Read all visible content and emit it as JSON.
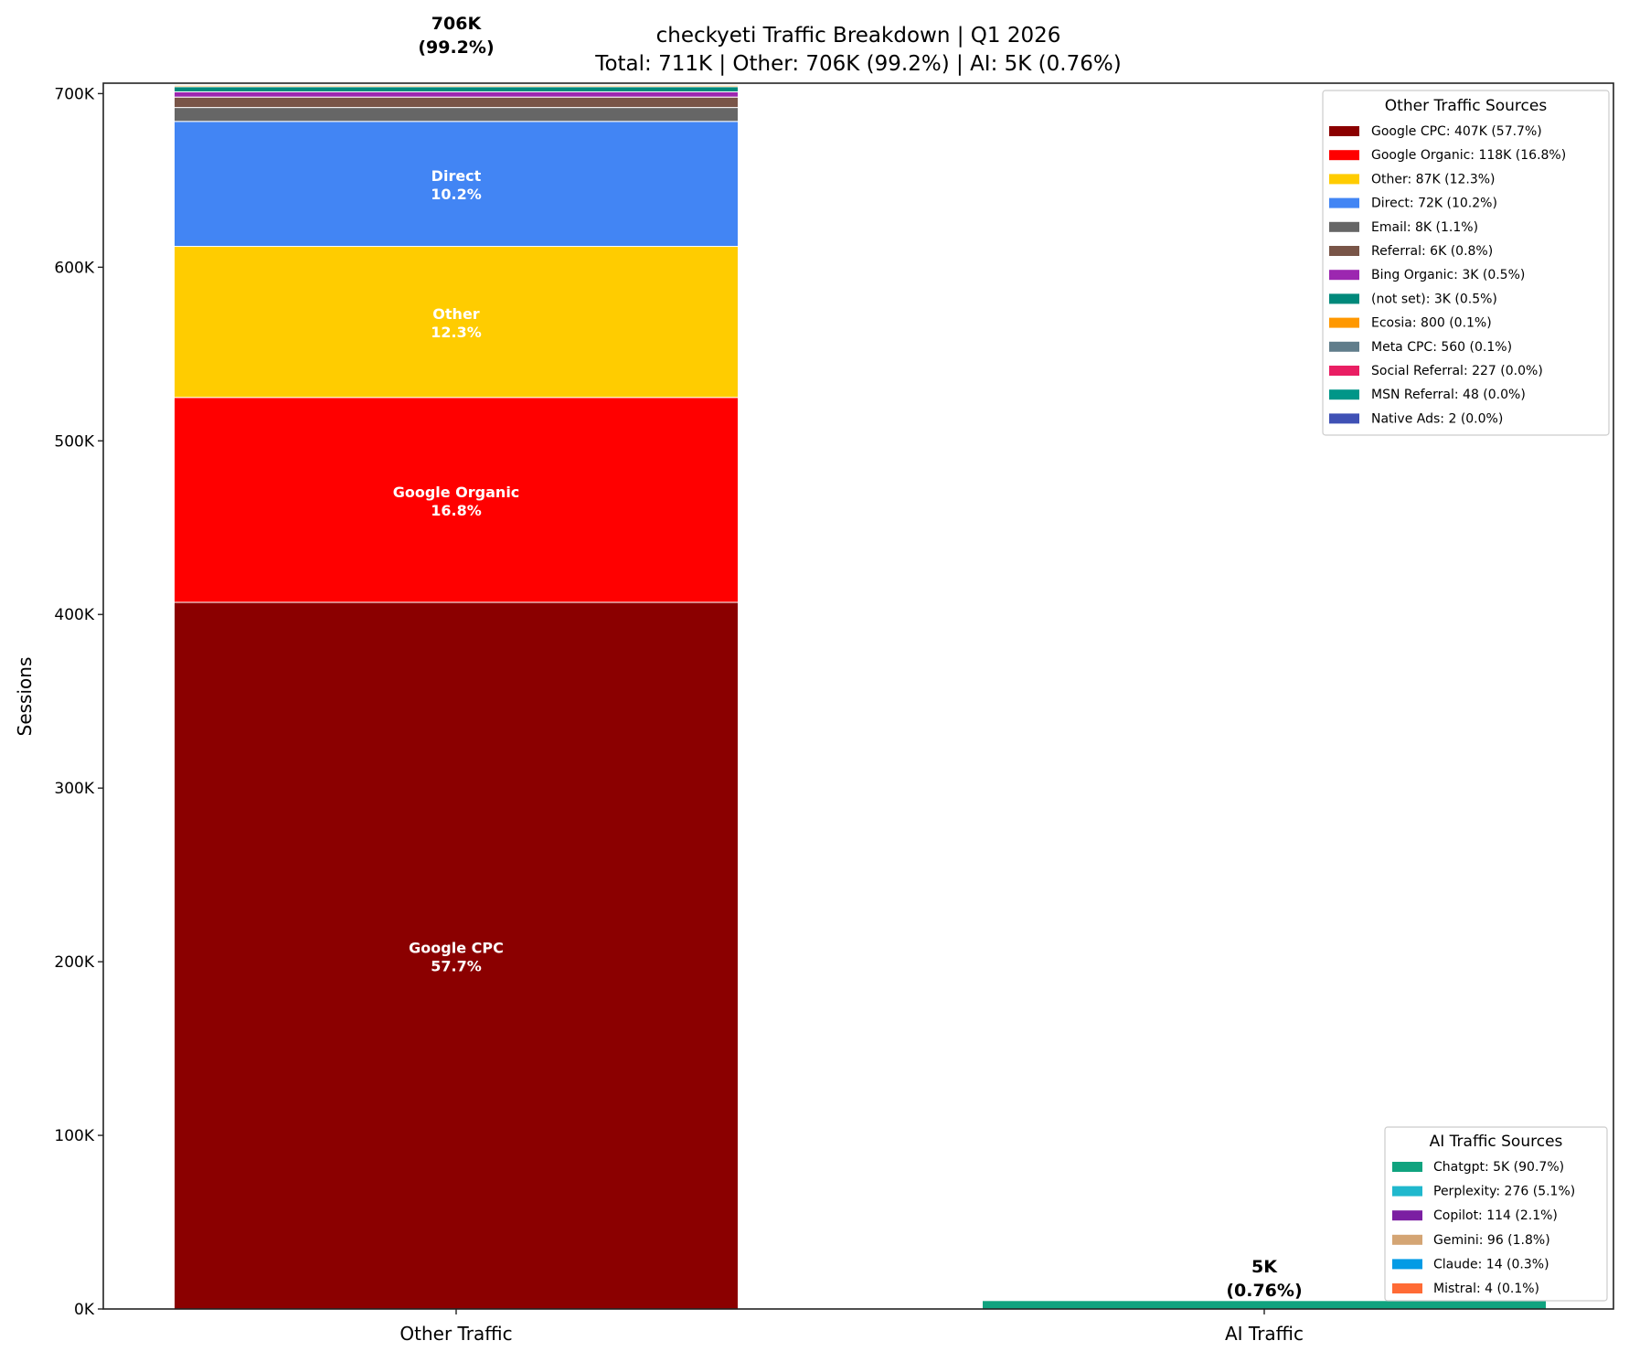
{
  "chart_data": {
    "type": "bar",
    "stacked": true,
    "title": "checkyeti Traffic Breakdown | Q1 2026",
    "subtitle": "Total: 711K | Other: 706K (99.2%) | AI: 5K (0.76%)",
    "xlabel": "",
    "ylabel": "Sessions",
    "ylim": [
      0,
      706000
    ],
    "yticks": [
      0,
      100000,
      200000,
      300000,
      400000,
      500000,
      600000,
      700000
    ],
    "ytick_labels": [
      "0K",
      "100K",
      "200K",
      "300K",
      "400K",
      "500K",
      "600K",
      "700K"
    ],
    "grid": false,
    "categories": [
      "Other Traffic",
      "AI Traffic"
    ],
    "bar_totals": [
      {
        "line1": "706K",
        "line2": "(99.2%)"
      },
      {
        "line1": "5K",
        "line2": "(0.76%)"
      }
    ],
    "other_series": [
      {
        "name": "Google CPC",
        "value": 407000,
        "color": "#8b0000",
        "legend": "Google CPC: 407K (57.7%)",
        "label": "Google CPC",
        "pct_label": "57.7%"
      },
      {
        "name": "Google Organic",
        "value": 118000,
        "color": "#ff0000",
        "legend": "Google Organic: 118K (16.8%)",
        "label": "Google Organic",
        "pct_label": "16.8%"
      },
      {
        "name": "Other",
        "value": 87000,
        "color": "#ffcc00",
        "legend": "Other: 87K (12.3%)",
        "label": "Other",
        "pct_label": "12.3%"
      },
      {
        "name": "Direct",
        "value": 72000,
        "color": "#4285f4",
        "legend": "Direct: 72K (10.2%)",
        "label": "Direct",
        "pct_label": "10.2%"
      },
      {
        "name": "Email",
        "value": 8000,
        "color": "#666666",
        "legend": "Email: 8K (1.1%)"
      },
      {
        "name": "Referral",
        "value": 6000,
        "color": "#795548",
        "legend": "Referral: 6K (0.8%)"
      },
      {
        "name": "Bing Organic",
        "value": 3000,
        "color": "#9c27b0",
        "legend": "Bing Organic: 3K (0.5%)"
      },
      {
        "name": "(not set)",
        "value": 3000,
        "color": "#00897b",
        "legend": "(not set): 3K (0.5%)"
      },
      {
        "name": "Ecosia",
        "value": 800,
        "color": "#ff9800",
        "legend": "Ecosia: 800 (0.1%)"
      },
      {
        "name": "Meta CPC",
        "value": 560,
        "color": "#607d8b",
        "legend": "Meta CPC: 560 (0.1%)"
      },
      {
        "name": "Social Referral",
        "value": 227,
        "color": "#e91e63",
        "legend": "Social Referral: 227 (0.0%)"
      },
      {
        "name": "MSN Referral",
        "value": 48,
        "color": "#009688",
        "legend": "MSN Referral: 48 (0.0%)"
      },
      {
        "name": "Native Ads",
        "value": 2,
        "color": "#3f51b5",
        "legend": "Native Ads: 2 (0.0%)"
      }
    ],
    "ai_series": [
      {
        "name": "Chatgpt",
        "value": 4900,
        "color": "#10a37f",
        "legend": "Chatgpt: 5K (90.7%)"
      },
      {
        "name": "Perplexity",
        "value": 276,
        "color": "#20b8cd",
        "legend": "Perplexity: 276 (5.1%)"
      },
      {
        "name": "Copilot",
        "value": 114,
        "color": "#7b1fa2",
        "legend": "Copilot: 114 (2.1%)"
      },
      {
        "name": "Gemini",
        "value": 96,
        "color": "#d4a574",
        "legend": "Gemini: 96 (1.8%)"
      },
      {
        "name": "Claude",
        "value": 14,
        "color": "#039be5",
        "legend": "Claude: 14 (0.3%)"
      },
      {
        "name": "Mistral",
        "value": 4,
        "color": "#ff6b35",
        "legend": "Mistral: 4 (0.1%)"
      }
    ],
    "legends": [
      {
        "title": "Other Traffic Sources",
        "placement": "top-right"
      },
      {
        "title": "AI Traffic Sources",
        "placement": "bottom-right"
      }
    ]
  }
}
